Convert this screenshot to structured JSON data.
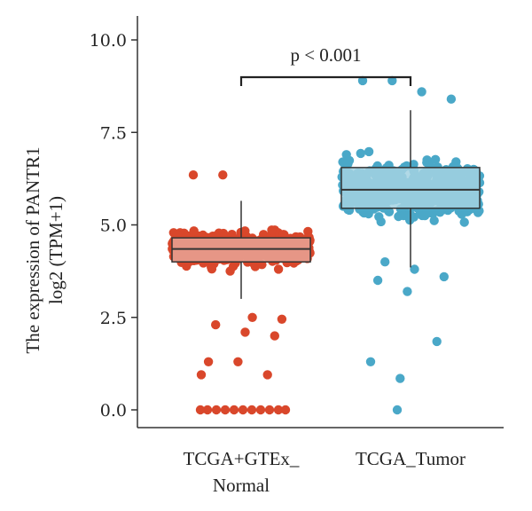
{
  "chart_data": {
    "type": "box",
    "title": "",
    "xlabel": "",
    "ylabel_lines": [
      "The expression of PANTR1",
      "log2 (TPM+1)"
    ],
    "ylim": [
      0,
      10
    ],
    "yticks": [
      0.0,
      2.5,
      5.0,
      7.5,
      10.0
    ],
    "ytick_labels": [
      "0.0",
      "2.5",
      "5.0",
      "7.5",
      "10.0"
    ],
    "grid": false,
    "legend": "none",
    "categories": [
      {
        "label_lines": [
          "TCGA+GTEx_",
          "Normal"
        ]
      },
      {
        "label_lines": [
          "TCGA_Tumor"
        ]
      }
    ],
    "series": [
      {
        "category_index": 0,
        "color": "#d9472b",
        "box_fill": "#e8a597",
        "q1": 4.0,
        "median": 4.35,
        "q3": 4.65,
        "whisker_low": 3.0,
        "whisker_high": 5.65,
        "points_dense_range": [
          2.6,
          5.9
        ],
        "points_outliers": [
          6.35,
          6.35,
          2.5,
          2.45,
          2.3,
          2.1,
          2.0,
          1.3,
          1.3,
          0.95,
          0.95,
          0.0,
          0.0,
          0.0,
          0.0,
          0.0,
          0.0,
          0.0,
          0.0,
          0.0,
          0.0,
          0.0
        ]
      },
      {
        "category_index": 1,
        "color": "#4aa8c8",
        "box_fill": "#a3d2e2",
        "q1": 5.45,
        "median": 5.95,
        "q3": 6.55,
        "whisker_low": 3.85,
        "whisker_high": 8.1,
        "points_dense_range": [
          4.3,
          8.0
        ],
        "points_outliers": [
          8.9,
          8.9,
          8.6,
          8.4,
          4.0,
          3.8,
          3.6,
          3.5,
          3.2,
          1.85,
          1.3,
          0.85,
          0.0
        ]
      }
    ],
    "annotation": {
      "text": "p < 0.001",
      "from_category": 0,
      "to_category": 1,
      "y": 9.0
    }
  }
}
